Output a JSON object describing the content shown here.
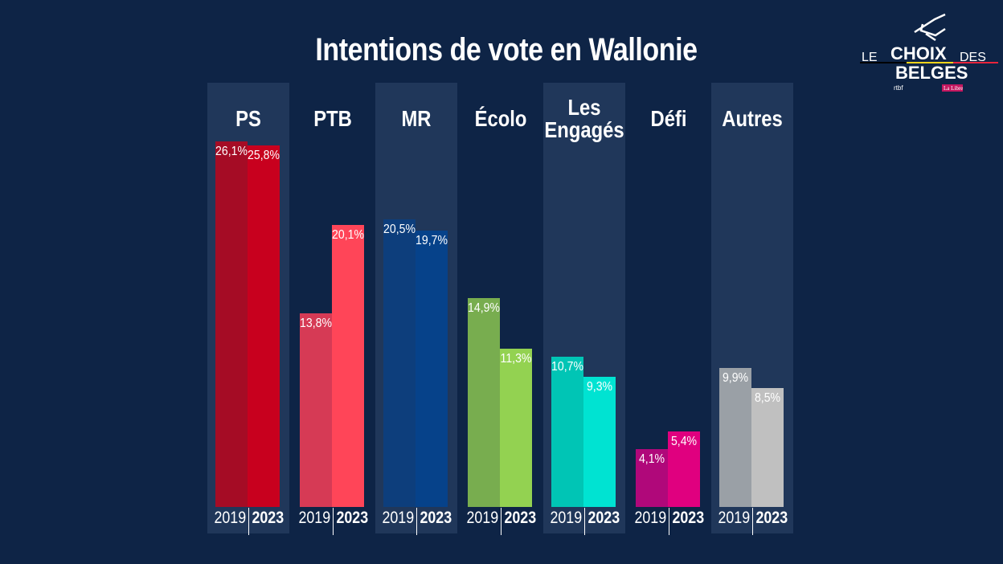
{
  "chart_data": {
    "type": "bar",
    "title": "Intentions de vote en Wallonie",
    "categories": [
      "PS",
      "PTB",
      "MR",
      "Écolo",
      "Les Engagés",
      "Défi",
      "Autres"
    ],
    "series": [
      {
        "name": "2019",
        "values": [
          26.1,
          13.8,
          20.5,
          14.9,
          10.7,
          4.1,
          9.9
        ],
        "labels": [
          "26,1%",
          "13,8%",
          "20,5%",
          "14,9%",
          "10,7%",
          "4,1%",
          "9,9%"
        ]
      },
      {
        "name": "2023",
        "values": [
          25.8,
          20.1,
          19.7,
          11.3,
          9.3,
          5.4,
          8.5
        ],
        "labels": [
          "25,8%",
          "20,1%",
          "19,7%",
          "11,3%",
          "9,3%",
          "5,4%",
          "8,5%"
        ]
      }
    ],
    "colors": {
      "2019": [
        "#a50c25",
        "#d63a55",
        "#0d3e7c",
        "#78ad4f",
        "#00c5b5",
        "#b0087a",
        "#9aa0a6"
      ],
      "2023": [
        "#c8001e",
        "#ff4558",
        "#06428a",
        "#93d251",
        "#00e3d2",
        "#e0007f",
        "#c0c0c0"
      ]
    },
    "ylim": [
      0,
      27
    ],
    "grid": false,
    "legend": "none",
    "shaded_columns": [
      0,
      2,
      4,
      6
    ]
  },
  "logo": {
    "line1": "LE CHOIX DES",
    "line2": "BELGES",
    "partners": [
      "rtbf",
      "La Libre"
    ]
  },
  "background": "#0e2446"
}
